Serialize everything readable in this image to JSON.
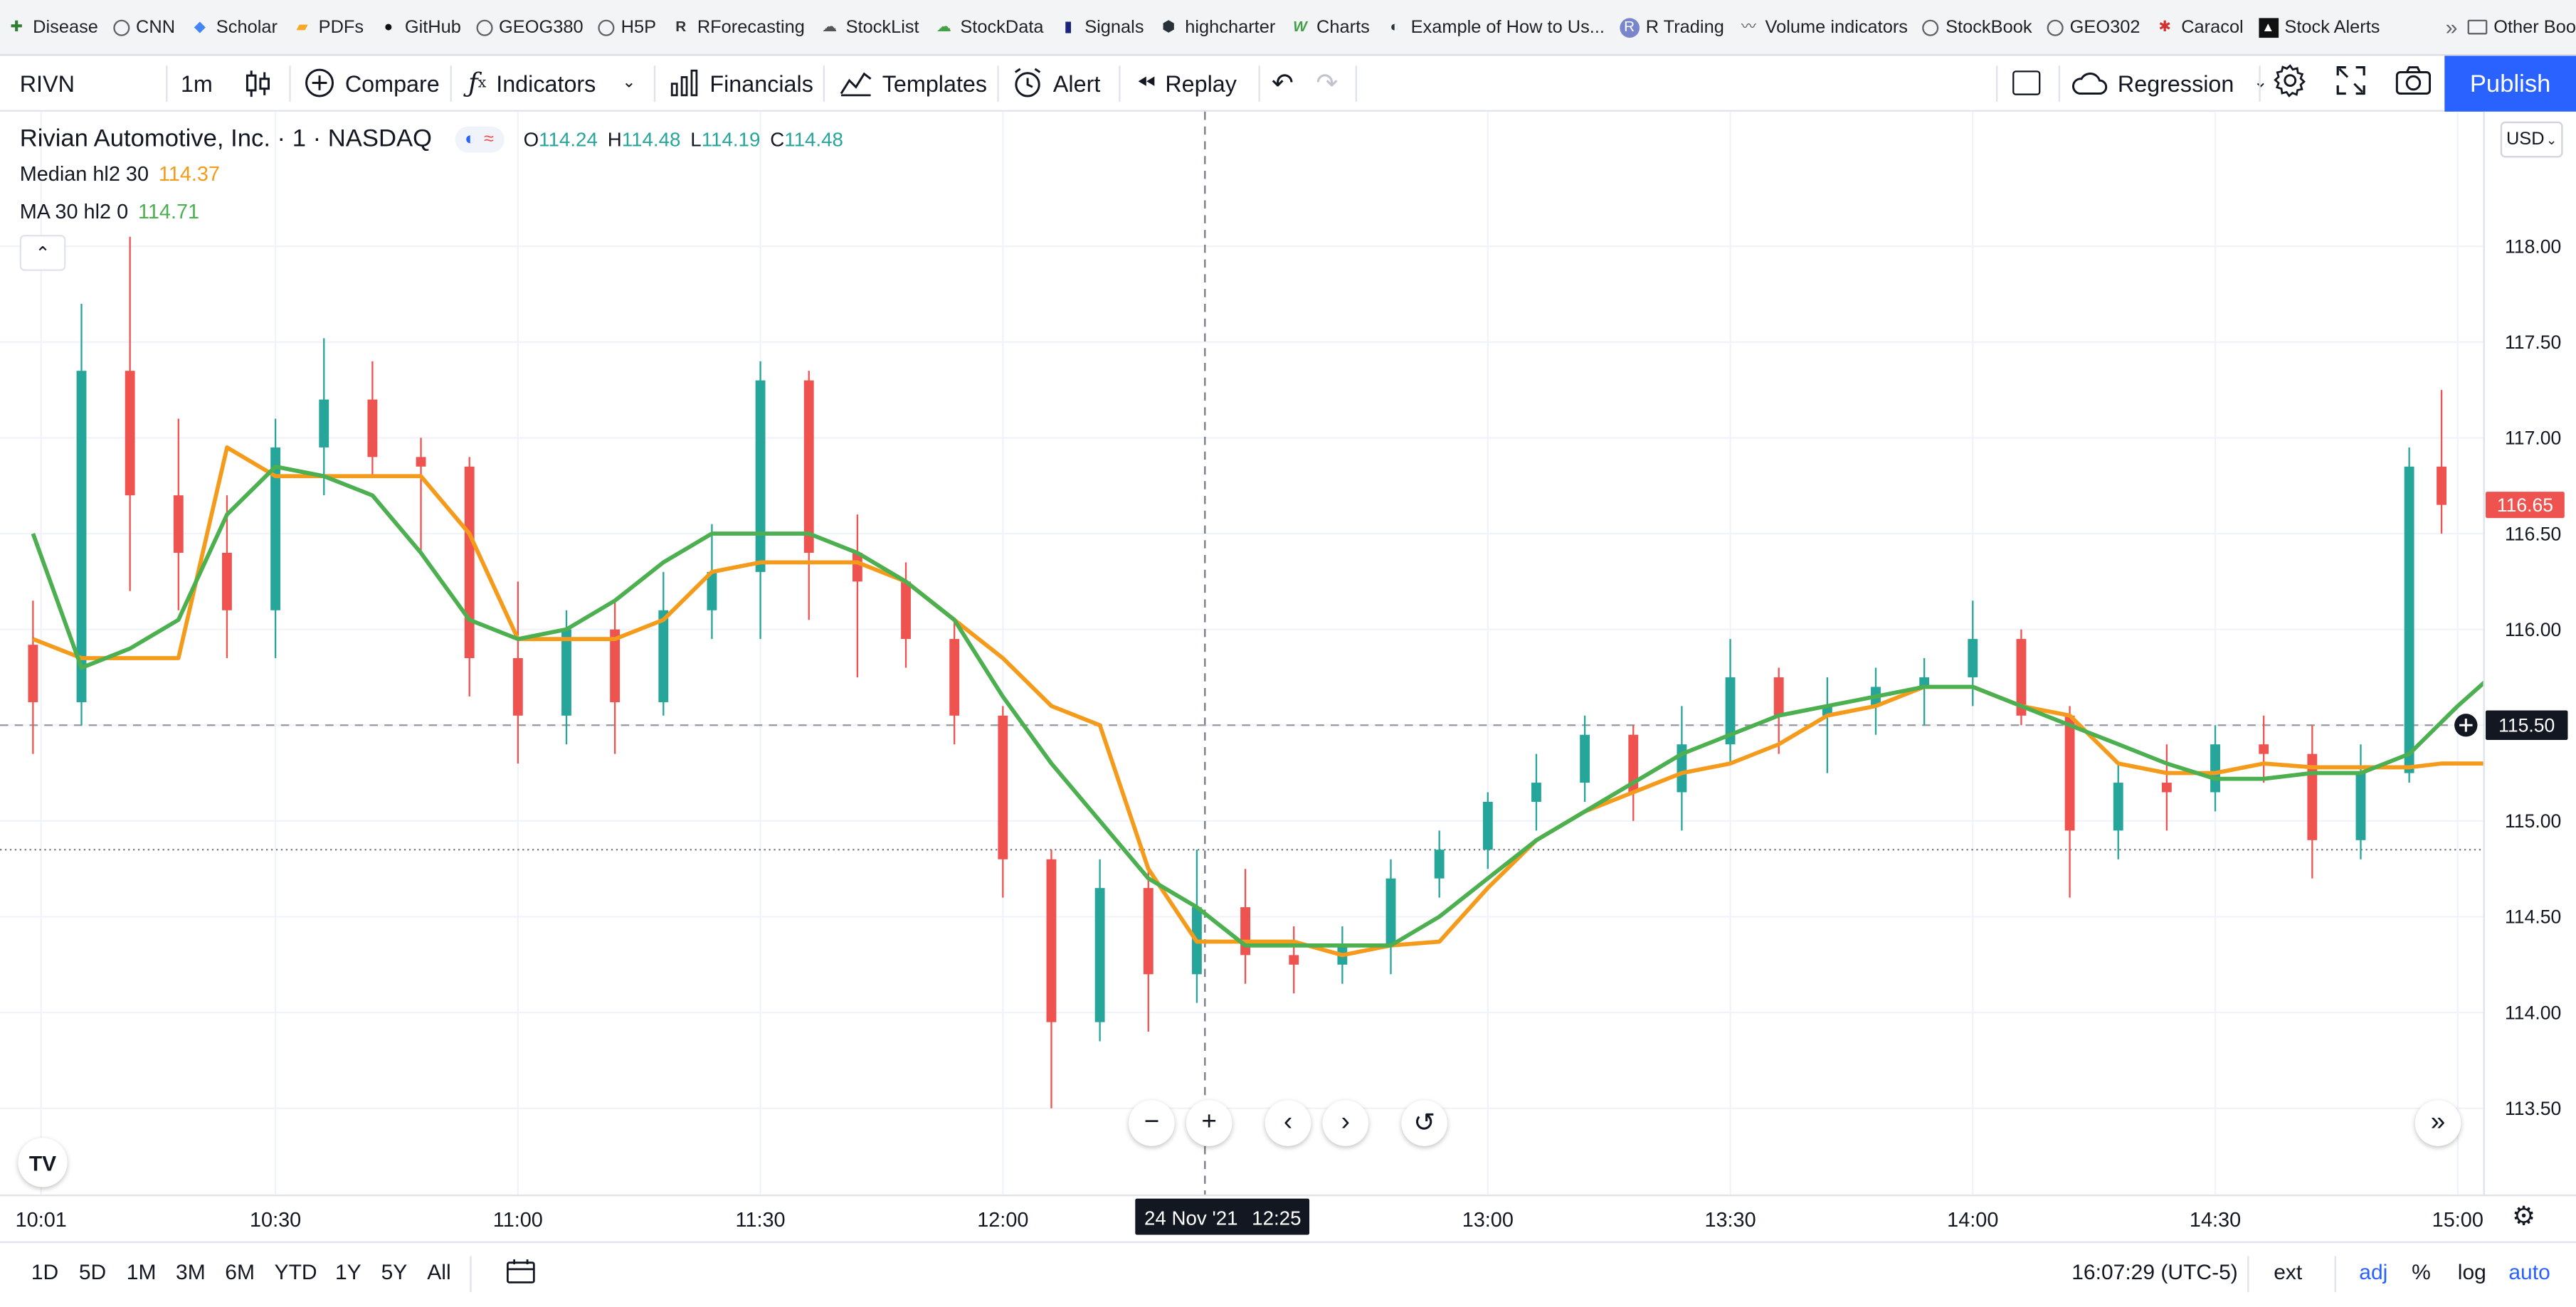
{
  "bookmarks": {
    "items": [
      {
        "label": "Disease",
        "icon": "disease-icon"
      },
      {
        "label": "CNN",
        "icon": "globe-icon"
      },
      {
        "label": "Scholar",
        "icon": "scholar-icon"
      },
      {
        "label": "PDFs",
        "icon": "pdf-icon"
      },
      {
        "label": "GitHub",
        "icon": "github-icon"
      },
      {
        "label": "GEOG380",
        "icon": "globe-icon"
      },
      {
        "label": "H5P",
        "icon": "globe-icon"
      },
      {
        "label": "RForecasting",
        "icon": "r-icon"
      },
      {
        "label": "StockList",
        "icon": "stocklist-icon"
      },
      {
        "label": "StockData",
        "icon": "stockdata-icon"
      },
      {
        "label": "Signals",
        "icon": "signals-icon"
      },
      {
        "label": "highcharter",
        "icon": "highcharter-icon"
      },
      {
        "label": "Charts",
        "icon": "w-icon"
      },
      {
        "label": "Example of How to Us...",
        "icon": "example-icon"
      },
      {
        "label": "R Trading",
        "icon": "r-trading-icon"
      },
      {
        "label": "Volume indicators",
        "icon": "volume-icon"
      },
      {
        "label": "StockBook",
        "icon": "globe-icon"
      },
      {
        "label": "GEO302",
        "icon": "globe-icon"
      },
      {
        "label": "Caracol",
        "icon": "caracol-icon"
      },
      {
        "label": "Stock Alerts",
        "icon": "alerts-icon"
      }
    ],
    "more_label": "»",
    "other_label": "Other Boo"
  },
  "toolbar": {
    "symbol": "RIVN",
    "interval": "1m",
    "compare": "Compare",
    "indicators": "Indicators",
    "financials": "Financials",
    "templates": "Templates",
    "alert": "Alert",
    "replay": "Replay",
    "regression": "Regression",
    "publish": "Publish"
  },
  "legend": {
    "title": "Rivian Automotive, Inc. · 1 · NASDAQ",
    "open_label": "O",
    "open": "114.24",
    "high_label": "H",
    "high": "114.48",
    "low_label": "L",
    "low": "114.19",
    "close_label": "C",
    "close": "114.48",
    "median_label": "Median hl2 30",
    "median_value": "114.37",
    "ma_label": "MA 30 hl2 0",
    "ma_value": "114.71"
  },
  "currency": "USD",
  "crosshair": {
    "date_label": "24 Nov '21",
    "time_label": "12:25",
    "price_label": "115.50"
  },
  "last_price_label": "116.65",
  "chart_data": {
    "type": "candlestick",
    "symbol": "RIVN",
    "interval_minutes": 1,
    "date": "24 Nov '21",
    "ylim": [
      113.4,
      118.5
    ],
    "y_ticks": [
      113.5,
      114.0,
      114.5,
      115.0,
      115.5,
      116.0,
      116.5,
      117.0,
      117.5,
      118.0
    ],
    "x_ticks": [
      "10:01",
      "10:30",
      "11:00",
      "11:30",
      "12:00",
      "13:00",
      "13:30",
      "14:00",
      "14:30",
      "15:00"
    ],
    "x_tick_minutes": [
      601,
      630,
      660,
      690,
      720,
      780,
      810,
      840,
      870,
      900
    ],
    "x_range_minutes": [
      600,
      904
    ],
    "last_price": 116.65,
    "candles": [
      {
        "t": 600,
        "o": 115.92,
        "h": 116.15,
        "l": 115.35,
        "c": 115.62
      },
      {
        "t": 606,
        "o": 115.62,
        "h": 117.7,
        "l": 115.5,
        "c": 117.35
      },
      {
        "t": 612,
        "o": 117.35,
        "h": 118.05,
        "l": 116.2,
        "c": 116.7
      },
      {
        "t": 618,
        "o": 116.7,
        "h": 117.1,
        "l": 116.1,
        "c": 116.4
      },
      {
        "t": 624,
        "o": 116.4,
        "h": 116.7,
        "l": 115.85,
        "c": 116.1
      },
      {
        "t": 630,
        "o": 116.1,
        "h": 117.1,
        "l": 115.85,
        "c": 116.95
      },
      {
        "t": 636,
        "o": 116.95,
        "h": 117.52,
        "l": 116.7,
        "c": 117.2
      },
      {
        "t": 642,
        "o": 117.2,
        "h": 117.4,
        "l": 116.8,
        "c": 116.9
      },
      {
        "t": 648,
        "o": 116.9,
        "h": 117.0,
        "l": 116.4,
        "c": 116.85
      },
      {
        "t": 654,
        "o": 116.85,
        "h": 116.9,
        "l": 115.65,
        "c": 115.85
      },
      {
        "t": 660,
        "o": 115.85,
        "h": 116.25,
        "l": 115.3,
        "c": 115.55
      },
      {
        "t": 666,
        "o": 115.55,
        "h": 116.1,
        "l": 115.4,
        "c": 116.0
      },
      {
        "t": 672,
        "o": 116.0,
        "h": 116.15,
        "l": 115.35,
        "c": 115.62
      },
      {
        "t": 678,
        "o": 115.62,
        "h": 116.3,
        "l": 115.55,
        "c": 116.1
      },
      {
        "t": 684,
        "o": 116.1,
        "h": 116.55,
        "l": 115.95,
        "c": 116.3
      },
      {
        "t": 690,
        "o": 116.3,
        "h": 117.4,
        "l": 115.95,
        "c": 117.3
      },
      {
        "t": 696,
        "o": 117.3,
        "h": 117.35,
        "l": 116.05,
        "c": 116.4
      },
      {
        "t": 702,
        "o": 116.4,
        "h": 116.6,
        "l": 115.75,
        "c": 116.25
      },
      {
        "t": 708,
        "o": 116.25,
        "h": 116.35,
        "l": 115.8,
        "c": 115.95
      },
      {
        "t": 714,
        "o": 115.95,
        "h": 116.05,
        "l": 115.4,
        "c": 115.55
      },
      {
        "t": 720,
        "o": 115.55,
        "h": 115.6,
        "l": 114.6,
        "c": 114.8
      },
      {
        "t": 726,
        "o": 114.8,
        "h": 114.85,
        "l": 113.5,
        "c": 113.95
      },
      {
        "t": 732,
        "o": 113.95,
        "h": 114.8,
        "l": 113.85,
        "c": 114.65
      },
      {
        "t": 738,
        "o": 114.65,
        "h": 114.75,
        "l": 113.9,
        "c": 114.2
      },
      {
        "t": 744,
        "o": 114.2,
        "h": 114.85,
        "l": 114.05,
        "c": 114.55
      },
      {
        "t": 750,
        "o": 114.55,
        "h": 114.75,
        "l": 114.15,
        "c": 114.3
      },
      {
        "t": 756,
        "o": 114.3,
        "h": 114.45,
        "l": 114.1,
        "c": 114.25
      },
      {
        "t": 762,
        "o": 114.25,
        "h": 114.45,
        "l": 114.15,
        "c": 114.35
      },
      {
        "t": 768,
        "o": 114.35,
        "h": 114.8,
        "l": 114.2,
        "c": 114.7
      },
      {
        "t": 774,
        "o": 114.7,
        "h": 114.95,
        "l": 114.6,
        "c": 114.85
      },
      {
        "t": 780,
        "o": 114.85,
        "h": 115.15,
        "l": 114.75,
        "c": 115.1
      },
      {
        "t": 786,
        "o": 115.1,
        "h": 115.35,
        "l": 114.95,
        "c": 115.2
      },
      {
        "t": 792,
        "o": 115.2,
        "h": 115.55,
        "l": 115.1,
        "c": 115.45
      },
      {
        "t": 798,
        "o": 115.45,
        "h": 115.5,
        "l": 115.0,
        "c": 115.15
      },
      {
        "t": 804,
        "o": 115.15,
        "h": 115.6,
        "l": 114.95,
        "c": 115.4
      },
      {
        "t": 810,
        "o": 115.4,
        "h": 115.95,
        "l": 115.3,
        "c": 115.75
      },
      {
        "t": 816,
        "o": 115.75,
        "h": 115.8,
        "l": 115.35,
        "c": 115.55
      },
      {
        "t": 822,
        "o": 115.55,
        "h": 115.75,
        "l": 115.25,
        "c": 115.6
      },
      {
        "t": 828,
        "o": 115.6,
        "h": 115.8,
        "l": 115.45,
        "c": 115.7
      },
      {
        "t": 834,
        "o": 115.7,
        "h": 115.85,
        "l": 115.5,
        "c": 115.75
      },
      {
        "t": 840,
        "o": 115.75,
        "h": 116.15,
        "l": 115.6,
        "c": 115.95
      },
      {
        "t": 846,
        "o": 115.95,
        "h": 116.0,
        "l": 115.5,
        "c": 115.55
      },
      {
        "t": 852,
        "o": 115.55,
        "h": 115.6,
        "l": 114.6,
        "c": 114.95
      },
      {
        "t": 858,
        "o": 114.95,
        "h": 115.3,
        "l": 114.8,
        "c": 115.2
      },
      {
        "t": 864,
        "o": 115.2,
        "h": 115.4,
        "l": 114.95,
        "c": 115.15
      },
      {
        "t": 870,
        "o": 115.15,
        "h": 115.5,
        "l": 115.05,
        "c": 115.4
      },
      {
        "t": 876,
        "o": 115.4,
        "h": 115.55,
        "l": 115.2,
        "c": 115.35
      },
      {
        "t": 882,
        "o": 115.35,
        "h": 115.5,
        "l": 114.7,
        "c": 114.9
      },
      {
        "t": 888,
        "o": 114.9,
        "h": 115.4,
        "l": 114.8,
        "c": 115.25
      },
      {
        "t": 894,
        "o": 115.25,
        "h": 116.95,
        "l": 115.2,
        "c": 116.85
      },
      {
        "t": 898,
        "o": 116.85,
        "h": 117.25,
        "l": 116.5,
        "c": 116.65
      }
    ],
    "series": [
      {
        "name": "Median hl2 30",
        "color": "#f59b1b",
        "points": [
          [
            600,
            115.95
          ],
          [
            606,
            115.85
          ],
          [
            612,
            115.85
          ],
          [
            618,
            115.85
          ],
          [
            624,
            116.95
          ],
          [
            630,
            116.8
          ],
          [
            636,
            116.8
          ],
          [
            642,
            116.8
          ],
          [
            648,
            116.8
          ],
          [
            654,
            116.5
          ],
          [
            660,
            115.95
          ],
          [
            666,
            115.95
          ],
          [
            672,
            115.95
          ],
          [
            678,
            116.05
          ],
          [
            684,
            116.3
          ],
          [
            690,
            116.35
          ],
          [
            696,
            116.35
          ],
          [
            702,
            116.35
          ],
          [
            708,
            116.25
          ],
          [
            714,
            116.05
          ],
          [
            720,
            115.85
          ],
          [
            726,
            115.6
          ],
          [
            732,
            115.5
          ],
          [
            738,
            114.75
          ],
          [
            744,
            114.37
          ],
          [
            750,
            114.37
          ],
          [
            756,
            114.37
          ],
          [
            762,
            114.3
          ],
          [
            768,
            114.35
          ],
          [
            774,
            114.37
          ],
          [
            780,
            114.65
          ],
          [
            786,
            114.9
          ],
          [
            792,
            115.05
          ],
          [
            798,
            115.15
          ],
          [
            804,
            115.25
          ],
          [
            810,
            115.3
          ],
          [
            816,
            115.4
          ],
          [
            822,
            115.55
          ],
          [
            828,
            115.6
          ],
          [
            834,
            115.7
          ],
          [
            840,
            115.7
          ],
          [
            846,
            115.6
          ],
          [
            852,
            115.55
          ],
          [
            858,
            115.3
          ],
          [
            864,
            115.25
          ],
          [
            870,
            115.25
          ],
          [
            876,
            115.3
          ],
          [
            882,
            115.28
          ],
          [
            888,
            115.28
          ],
          [
            894,
            115.28
          ],
          [
            898,
            115.3
          ],
          [
            904,
            115.3
          ]
        ]
      },
      {
        "name": "MA 30 hl2 0",
        "color": "#4caf50",
        "points": [
          [
            600,
            116.5
          ],
          [
            606,
            115.8
          ],
          [
            612,
            115.9
          ],
          [
            618,
            116.05
          ],
          [
            624,
            116.6
          ],
          [
            630,
            116.85
          ],
          [
            636,
            116.8
          ],
          [
            642,
            116.7
          ],
          [
            648,
            116.4
          ],
          [
            654,
            116.05
          ],
          [
            660,
            115.95
          ],
          [
            666,
            116.0
          ],
          [
            672,
            116.15
          ],
          [
            678,
            116.35
          ],
          [
            684,
            116.5
          ],
          [
            690,
            116.5
          ],
          [
            696,
            116.5
          ],
          [
            702,
            116.4
          ],
          [
            708,
            116.25
          ],
          [
            714,
            116.05
          ],
          [
            720,
            115.65
          ],
          [
            726,
            115.3
          ],
          [
            732,
            115.0
          ],
          [
            738,
            114.7
          ],
          [
            744,
            114.55
          ],
          [
            750,
            114.35
          ],
          [
            756,
            114.35
          ],
          [
            762,
            114.35
          ],
          [
            768,
            114.35
          ],
          [
            774,
            114.5
          ],
          [
            780,
            114.7
          ],
          [
            786,
            114.9
          ],
          [
            792,
            115.05
          ],
          [
            798,
            115.2
          ],
          [
            804,
            115.35
          ],
          [
            810,
            115.45
          ],
          [
            816,
            115.55
          ],
          [
            822,
            115.6
          ],
          [
            828,
            115.65
          ],
          [
            834,
            115.7
          ],
          [
            840,
            115.7
          ],
          [
            846,
            115.6
          ],
          [
            852,
            115.5
          ],
          [
            858,
            115.4
          ],
          [
            864,
            115.3
          ],
          [
            870,
            115.22
          ],
          [
            876,
            115.22
          ],
          [
            882,
            115.25
          ],
          [
            888,
            115.25
          ],
          [
            894,
            115.35
          ],
          [
            900,
            115.6
          ],
          [
            904,
            115.75
          ]
        ]
      }
    ]
  },
  "bottom": {
    "ranges": [
      "1D",
      "5D",
      "1M",
      "3M",
      "6M",
      "YTD",
      "1Y",
      "5Y",
      "All"
    ],
    "clock": "16:07:29 (UTC-5)",
    "ext": "ext",
    "adj": "adj",
    "percent": "%",
    "log": "log",
    "auto": "auto"
  },
  "colors": {
    "up": "#26a69a",
    "down": "#ef5350",
    "accent": "#2962ff",
    "median": "#f59b1b",
    "ma": "#4caf50"
  }
}
